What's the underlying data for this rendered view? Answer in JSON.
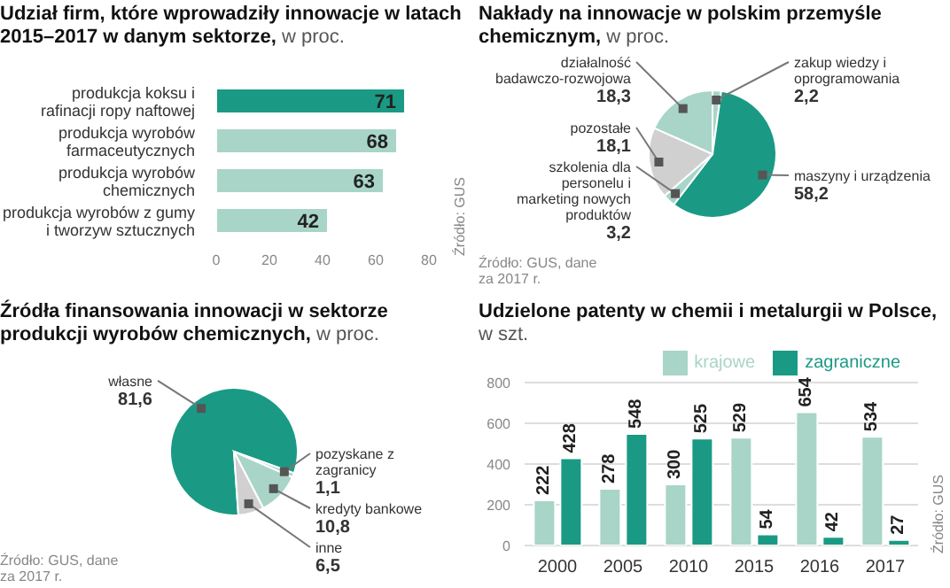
{
  "chart_data": [
    {
      "type": "bar",
      "orientation": "horizontal",
      "title": "Udział firm, które wprowadziły innowacje w latach 2015–2017 w danym sektorze,",
      "subtitle": "w proc.",
      "categories": [
        "produkcja koksu i rafinacji ropy naftowej",
        "produkcja wyrobów farmaceutycznych",
        "produkcja wyrobów chemicznych",
        "produkcja wyrobów z gumy i tworzyw sztucznych"
      ],
      "values": [
        71,
        68,
        63,
        42
      ],
      "colors": [
        "#1a9a84",
        "#a8d5c8",
        "#a8d5c8",
        "#a8d5c8"
      ],
      "xlim": [
        0,
        80
      ],
      "xticks": [
        0,
        20,
        40,
        60,
        80
      ],
      "data_labels": true,
      "annotations": [
        "Źródło: GUS"
      ]
    },
    {
      "type": "pie",
      "title": "Nakłady na innowacje w polskim przemyśle chemicznym,",
      "subtitle": "w proc.",
      "categories": [
        "zakup wiedzy i oprogramowania",
        "maszyny i urządzenia",
        "szkolenia dla personelu i marketing nowych produktów",
        "pozostałe",
        "działalność badawczo-rozwojowa"
      ],
      "values": [
        2.2,
        58.2,
        3.2,
        18.1,
        18.3
      ],
      "colors": [
        "#a8d5c8",
        "#1a9a84",
        "#a8d5c8",
        "#d0d0d0",
        "#a8d5c8"
      ],
      "value_labels": [
        "2,2",
        "58,2",
        "3,2",
        "18,1",
        "18,3"
      ],
      "annotations": [
        "Źródło: GUS, dane za 2017 r."
      ]
    },
    {
      "type": "pie",
      "title": "Źródła finansowania innowacji w sektorze produkcji wyrobów chemicznych,",
      "subtitle": "w proc.",
      "categories": [
        "własne",
        "pozyskane z zagranicy",
        "kredyty bankowe",
        "inne"
      ],
      "values": [
        81.6,
        1.1,
        10.8,
        6.5
      ],
      "colors": [
        "#1a9a84",
        "#a8d5c8",
        "#a8d5c8",
        "#d0d0d0"
      ],
      "value_labels": [
        "81,6",
        "1,1",
        "10,8",
        "6,5"
      ],
      "annotations": [
        "Źródło: GUS, dane za 2017 r."
      ]
    },
    {
      "type": "bar",
      "title": "Udzielone patenty w chemii i metalurgii w Polsce,",
      "subtitle": "w szt.",
      "categories": [
        "2000",
        "2005",
        "2010",
        "2015",
        "2016",
        "2017"
      ],
      "series": [
        {
          "name": "krajowe",
          "color": "#a8d5c8",
          "values": [
            222,
            278,
            300,
            529,
            654,
            534
          ]
        },
        {
          "name": "zagraniczne",
          "color": "#1a9a84",
          "values": [
            428,
            548,
            525,
            54,
            42,
            27
          ]
        }
      ],
      "ylim": [
        0,
        800
      ],
      "yticks": [
        0,
        200,
        400,
        600,
        800
      ],
      "grid": "y",
      "legend": "top right",
      "data_labels": true,
      "annotations": [
        "Źródło: GUS"
      ]
    }
  ]
}
